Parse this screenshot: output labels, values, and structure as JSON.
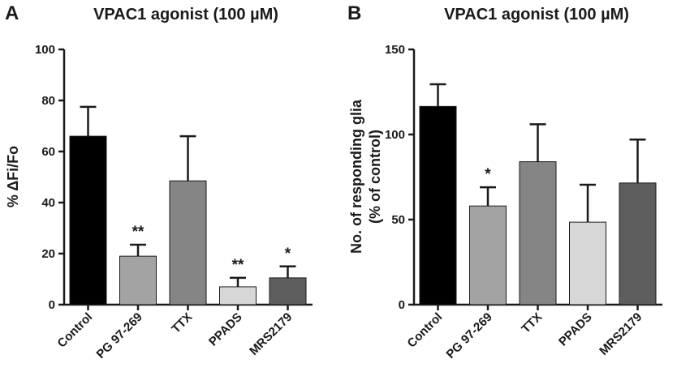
{
  "chart_data": [
    {
      "type": "bar",
      "panel": "A",
      "title": "VPAC1 agonist (100 µM)",
      "xlabel": "",
      "ylabel": "% ΔFi/Fo",
      "ylabel_lines": [
        "% ΔFi/Fo"
      ],
      "ylim": [
        0,
        100
      ],
      "yticks": [
        0,
        20,
        40,
        60,
        80,
        100
      ],
      "categories": [
        "Control",
        "PG 97-269",
        "TTX",
        "PPADS",
        "MRS2179"
      ],
      "values": [
        66,
        19,
        48.5,
        7,
        10.5
      ],
      "errors": [
        11.5,
        4.5,
        17.5,
        3.5,
        4.5
      ],
      "significance": [
        "",
        "**",
        "",
        "**",
        "*"
      ],
      "colors": [
        "#000000",
        "#a3a3a3",
        "#858585",
        "#d7d7d7",
        "#5e5e5e"
      ],
      "grid": false
    },
    {
      "type": "bar",
      "panel": "B",
      "title": "VPAC1 agonist (100 µM)",
      "xlabel": "",
      "ylabel": "No. of responding glia (% of control)",
      "ylabel_lines": [
        "No. of responding glia",
        "(% of control)"
      ],
      "ylim": [
        0,
        150
      ],
      "yticks": [
        0,
        50,
        100,
        150
      ],
      "categories": [
        "Control",
        "PG 97-269",
        "TTX",
        "PPADS",
        "MRS2179"
      ],
      "values": [
        116.5,
        58,
        84,
        48.5,
        71.5
      ],
      "errors": [
        13,
        11,
        22,
        22,
        25.5
      ],
      "significance": [
        "",
        "*",
        "",
        "",
        ""
      ],
      "colors": [
        "#000000",
        "#a3a3a3",
        "#858585",
        "#d7d7d7",
        "#5e5e5e"
      ],
      "grid": false
    }
  ]
}
